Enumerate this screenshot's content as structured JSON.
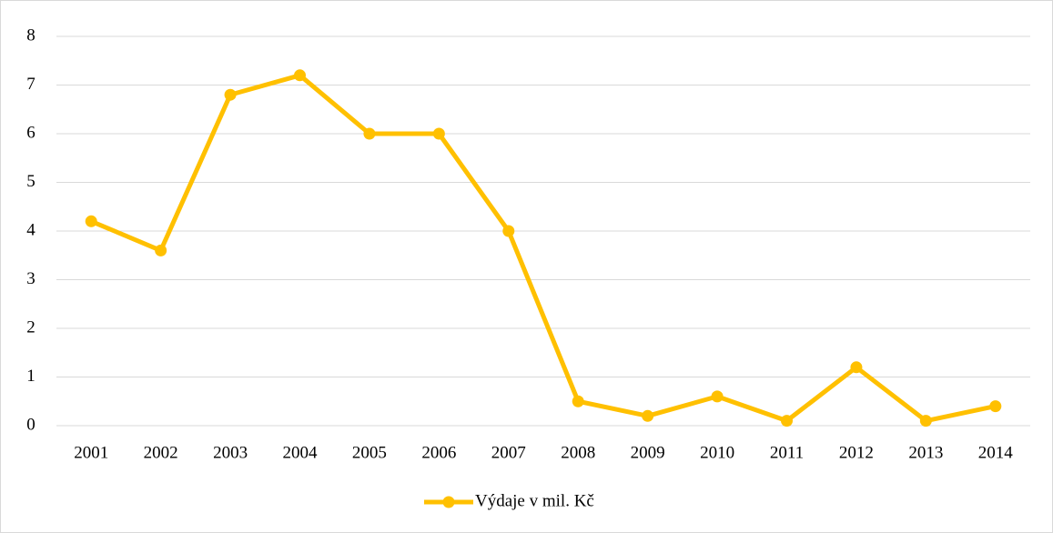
{
  "chart_data": {
    "type": "line",
    "categories": [
      "2001",
      "2002",
      "2003",
      "2004",
      "2005",
      "2006",
      "2007",
      "2008",
      "2009",
      "2010",
      "2011",
      "2012",
      "2013",
      "2014"
    ],
    "series": [
      {
        "name": "Výdaje v mil. Kč",
        "color": "#ffc000",
        "values": [
          4.2,
          3.6,
          6.8,
          7.2,
          6.0,
          6.0,
          4.0,
          0.5,
          0.2,
          0.6,
          0.1,
          1.2,
          0.1,
          0.4
        ]
      }
    ],
    "ylim": [
      0,
      8
    ],
    "yticks": [
      0,
      1,
      2,
      3,
      4,
      5,
      6,
      7,
      8
    ],
    "grid": true,
    "legend": "bottom"
  }
}
